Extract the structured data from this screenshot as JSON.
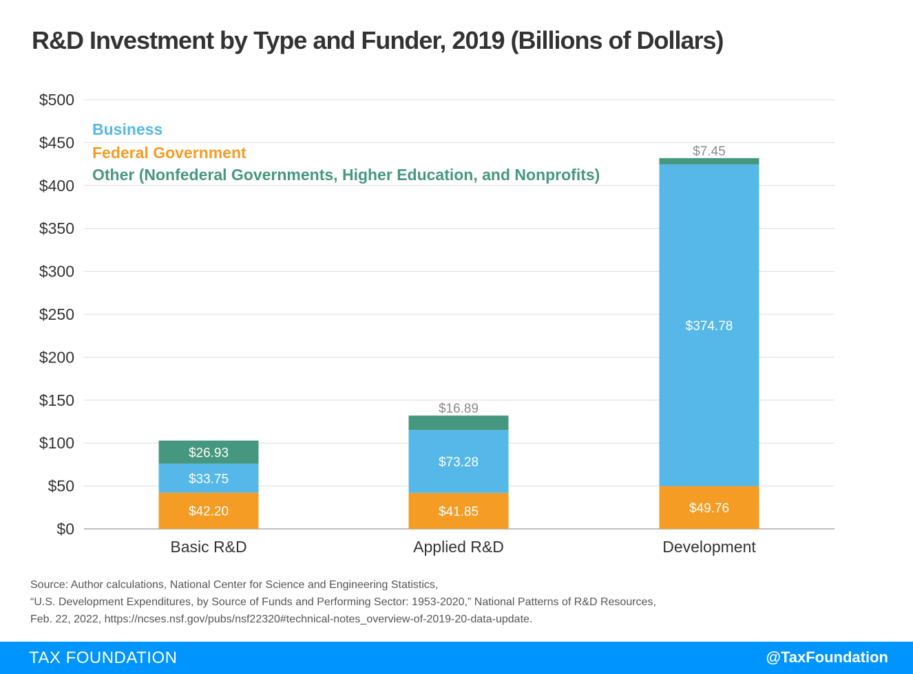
{
  "title": "R&D Investment by Type and Funder, 2019 (Billions of Dollars)",
  "colors": {
    "business": "#55b8e8",
    "federal": "#f59c25",
    "other": "#46977f",
    "grid": "#dcdcdc",
    "axis_text": "#333333",
    "outside_label": "#8a8a8a",
    "footer": "#0094ff"
  },
  "chart_data": {
    "type": "bar",
    "stacked": true,
    "categories": [
      "Basic R&D",
      "Applied R&D",
      "Development"
    ],
    "series": [
      {
        "name": "Federal Government",
        "color": "#f59c25",
        "values": [
          42.2,
          41.85,
          49.76
        ],
        "labels": [
          "$42.20",
          "$41.85",
          "$49.76"
        ]
      },
      {
        "name": "Business",
        "color": "#55b8e8",
        "values": [
          33.75,
          73.28,
          374.78
        ],
        "labels": [
          "$33.75",
          "$73.28",
          "$374.78"
        ]
      },
      {
        "name": "Other (Nonfederal Governments, Higher Education, and Nonprofits)",
        "color": "#46977f",
        "values": [
          26.93,
          16.89,
          7.45
        ],
        "labels": [
          "$26.93",
          "$16.89",
          "$7.45"
        ]
      }
    ],
    "legend": [
      {
        "name": "Business",
        "color": "#55b8e8"
      },
      {
        "name": "Federal Government",
        "color": "#f59c25"
      },
      {
        "name": "Other (Nonfederal Governments, Higher Education, and Nonprofits)",
        "color": "#46977f"
      }
    ],
    "legend_position": "top-left",
    "ylim": [
      0,
      500
    ],
    "yticks": [
      0,
      50,
      100,
      150,
      200,
      250,
      300,
      350,
      400,
      450,
      500
    ],
    "ytick_labels": [
      "$0",
      "$50",
      "$100",
      "$150",
      "$200",
      "$250",
      "$300",
      "$350",
      "$400",
      "$450",
      "$500"
    ],
    "grid": true,
    "xlabel": "",
    "ylabel": ""
  },
  "source": [
    "Source: Author calculations, National Center for Science and Engineering Statistics,",
    "“U.S. Development Expenditures, by Source of Funds and Performing Sector: 1953-2020,” National Patterns of R&D Resources,",
    "Feb. 22, 2022, https://ncses.nsf.gov/pubs/nsf22320#technical-notes_overview-of-2019-20-data-update."
  ],
  "footer": {
    "brand": "TAX FOUNDATION",
    "handle": "@TaxFoundation"
  }
}
